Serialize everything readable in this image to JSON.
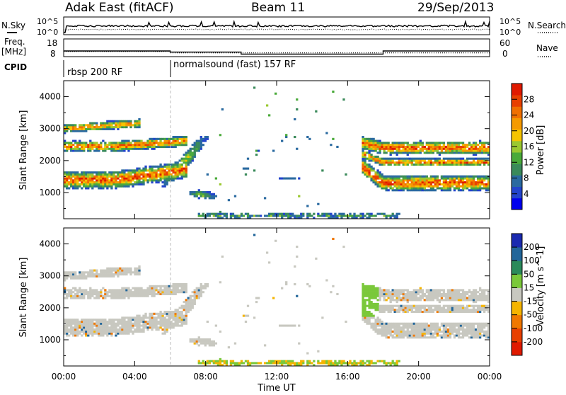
{
  "header": {
    "radar": "Adak East (fitACF)",
    "beam": "Beam 11",
    "date": "29/Sep/2013"
  },
  "noise_panel": {
    "left_label": "N.Sky",
    "right_label": "N.Search",
    "left_ticks": [
      "10^5",
      "10^0"
    ],
    "right_ticks": [
      "10^5",
      "10^0"
    ]
  },
  "freq_panel": {
    "left_label_1": "Freq.",
    "left_label_2": "[MHz]",
    "right_label": "Nave",
    "left_ticks": [
      "18",
      "8"
    ],
    "right_ticks": [
      "60",
      "0"
    ],
    "freq_steps_hours": [
      [
        0,
        6,
        12.0
      ],
      [
        6,
        10,
        11.2
      ],
      [
        10,
        18,
        9.8
      ],
      [
        18,
        24,
        12.0
      ]
    ],
    "nave_steps_hours": [
      [
        0,
        6,
        22
      ],
      [
        6,
        24,
        16
      ]
    ]
  },
  "cpid_panel": {
    "label": "CPID",
    "programs": [
      {
        "name": "rbsp 200 RF",
        "start_hour": 0,
        "end_hour": 6
      },
      {
        "name": "normalsound (fast) 157 RF",
        "start_hour": 6,
        "end_hour": 24
      }
    ]
  },
  "chart_data": [
    {
      "type": "heatmap",
      "title": "",
      "xlabel": "Time UT",
      "ylabel": "Slant Range [km]",
      "xlim": [
        0,
        24
      ],
      "ylim": [
        180,
        4500
      ],
      "yticks": [
        1000,
        2000,
        3000,
        4000
      ],
      "xticks": [
        "00:00",
        "04:00",
        "08:00",
        "12:00",
        "16:00",
        "20:00",
        "00:00"
      ],
      "colorbar": {
        "label": "Power [dB]",
        "ticks": [
          4,
          8,
          12,
          16,
          20,
          24,
          28
        ],
        "range": [
          0,
          32
        ],
        "colors": [
          "#0000ee",
          "#2244cc",
          "#2a6aa0",
          "#3a8a5a",
          "#4aaa3a",
          "#9ac830",
          "#f5c400",
          "#f59a00",
          "#f07000",
          "#e84000",
          "#e01a00"
        ]
      }
    },
    {
      "type": "heatmap",
      "title": "",
      "xlabel": "Time UT",
      "ylabel": "Slant Range [km]",
      "xlim": [
        0,
        24
      ],
      "ylim": [
        180,
        4500
      ],
      "yticks": [
        1000,
        2000,
        3000,
        4000
      ],
      "xticks": [
        "00:00",
        "04:00",
        "08:00",
        "12:00",
        "16:00",
        "20:00",
        "00:00"
      ],
      "colorbar": {
        "label": "Velocity [m s^-1]",
        "ticks": [
          200,
          100,
          50,
          15,
          -15,
          -50,
          -100,
          -200
        ],
        "colors": [
          "#1a2ab0",
          "#22669a",
          "#2a8a5a",
          "#7ac83a",
          "#c8c8c0",
          "#f5b400",
          "#f07800",
          "#e84000",
          "#e01a00"
        ]
      }
    }
  ]
}
